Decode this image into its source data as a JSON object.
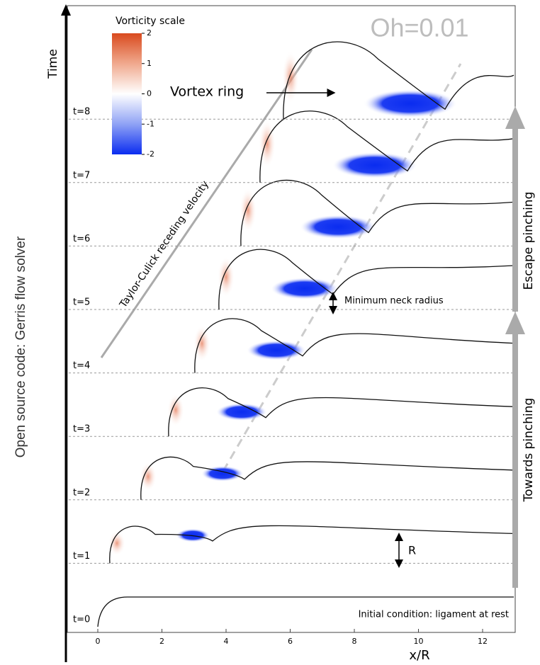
{
  "title": "Oh=0.01",
  "side_label": "Open source code: Gerris flow solver",
  "y_axis_label": "Time",
  "x_axis": {
    "label": "x/R",
    "ticks": [
      0,
      2,
      4,
      6,
      8,
      10,
      12
    ]
  },
  "colorbar": {
    "title": "Vorticity scale",
    "ticks": [
      2,
      1,
      0,
      -1,
      -2
    ]
  },
  "time_labels": [
    "t=0",
    "t=1",
    "t=2",
    "t=3",
    "t=4",
    "t=5",
    "t=6",
    "t=7",
    "t=8"
  ],
  "annotations": {
    "vortex_ring": "Vortex ring",
    "minimum_neck_radius": "Minimum neck radius",
    "radius": "R",
    "initial_condition": "Initial condition: ligament at rest",
    "taylor_culick": "Taylor-Culick receding velocity",
    "escape_pinching": "Escape pinching",
    "towards_pinching": "Towards pinching"
  }
}
